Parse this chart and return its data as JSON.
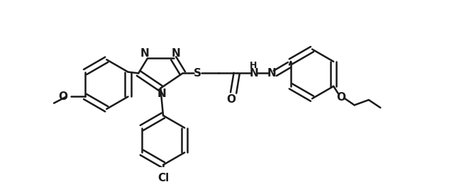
{
  "bg_color": "#ffffff",
  "line_color": "#1a1a1a",
  "line_width": 1.8,
  "figsize": [
    6.4,
    2.57
  ],
  "dpi": 100,
  "font_size": 11,
  "font_weight": "bold",
  "xlim": [
    0.0,
    6.4
  ],
  "ylim": [
    0.0,
    2.57
  ]
}
